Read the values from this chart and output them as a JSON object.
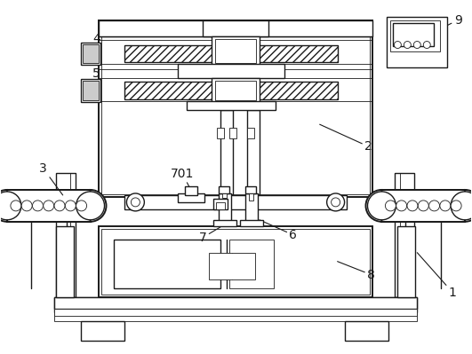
{
  "bg_color": "#ffffff",
  "line_color": "#1a1a1a",
  "figsize": [
    5.31,
    3.99
  ],
  "dpi": 100,
  "label_fs": 10,
  "label_color": "#1a1a1a"
}
